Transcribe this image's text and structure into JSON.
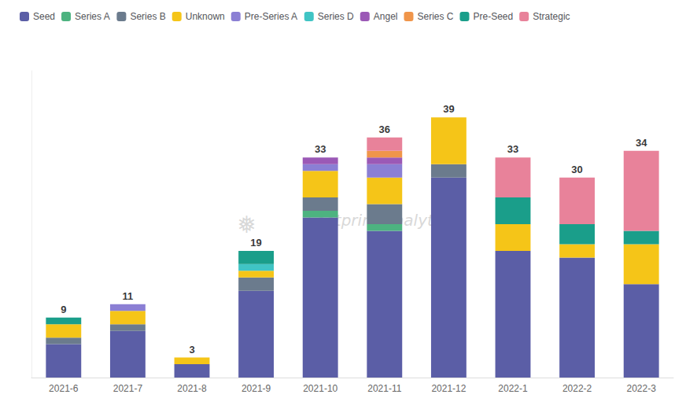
{
  "chart_data": {
    "type": "bar",
    "stacked": true,
    "categories": [
      "2021-6",
      "2021-7",
      "2021-8",
      "2021-9",
      "2021-10",
      "2021-11",
      "2021-12",
      "2022-1",
      "2022-2",
      "2022-3"
    ],
    "series": [
      {
        "name": "Seed",
        "color": "#5b5ea6",
        "values": [
          5,
          7,
          2,
          13,
          24,
          22,
          30,
          19,
          18,
          14
        ]
      },
      {
        "name": "Series A",
        "color": "#4db380",
        "values": [
          0,
          0,
          0,
          0,
          1,
          1,
          0,
          0,
          0,
          0
        ]
      },
      {
        "name": "Series B",
        "color": "#6b7b8d",
        "values": [
          1,
          1,
          0,
          2,
          2,
          3,
          2,
          0,
          0,
          0
        ]
      },
      {
        "name": "Unknown",
        "color": "#f5c518",
        "values": [
          2,
          2,
          1,
          1,
          4,
          4,
          7,
          4,
          2,
          6
        ]
      },
      {
        "name": "Pre-Series A",
        "color": "#8b7fd4",
        "values": [
          0,
          1,
          0,
          0,
          1,
          2,
          0,
          0,
          0,
          0
        ]
      },
      {
        "name": "Series D",
        "color": "#40c4c4",
        "values": [
          0,
          0,
          0,
          1,
          0,
          0,
          0,
          0,
          0,
          0
        ]
      },
      {
        "name": "Angel",
        "color": "#9b59b6",
        "values": [
          0,
          0,
          0,
          0,
          1,
          1,
          0,
          0,
          0,
          0
        ]
      },
      {
        "name": "Series C",
        "color": "#f0954a",
        "values": [
          0,
          0,
          0,
          0,
          0,
          1,
          0,
          0,
          0,
          0
        ]
      },
      {
        "name": "Pre-Seed",
        "color": "#1a9e8a",
        "values": [
          1,
          0,
          0,
          2,
          0,
          0,
          0,
          4,
          3,
          2
        ]
      },
      {
        "name": "Strategic",
        "color": "#e8829a",
        "values": [
          0,
          0,
          0,
          0,
          0,
          2,
          0,
          6,
          7,
          12
        ]
      }
    ],
    "totals": [
      9,
      11,
      3,
      19,
      33,
      36,
      39,
      33,
      30,
      34
    ],
    "annotations": [
      "❅",
      "Footprint Analytics"
    ],
    "ylim": [
      0,
      46
    ],
    "tick_labels": "x",
    "grid": false,
    "legend": "top"
  }
}
